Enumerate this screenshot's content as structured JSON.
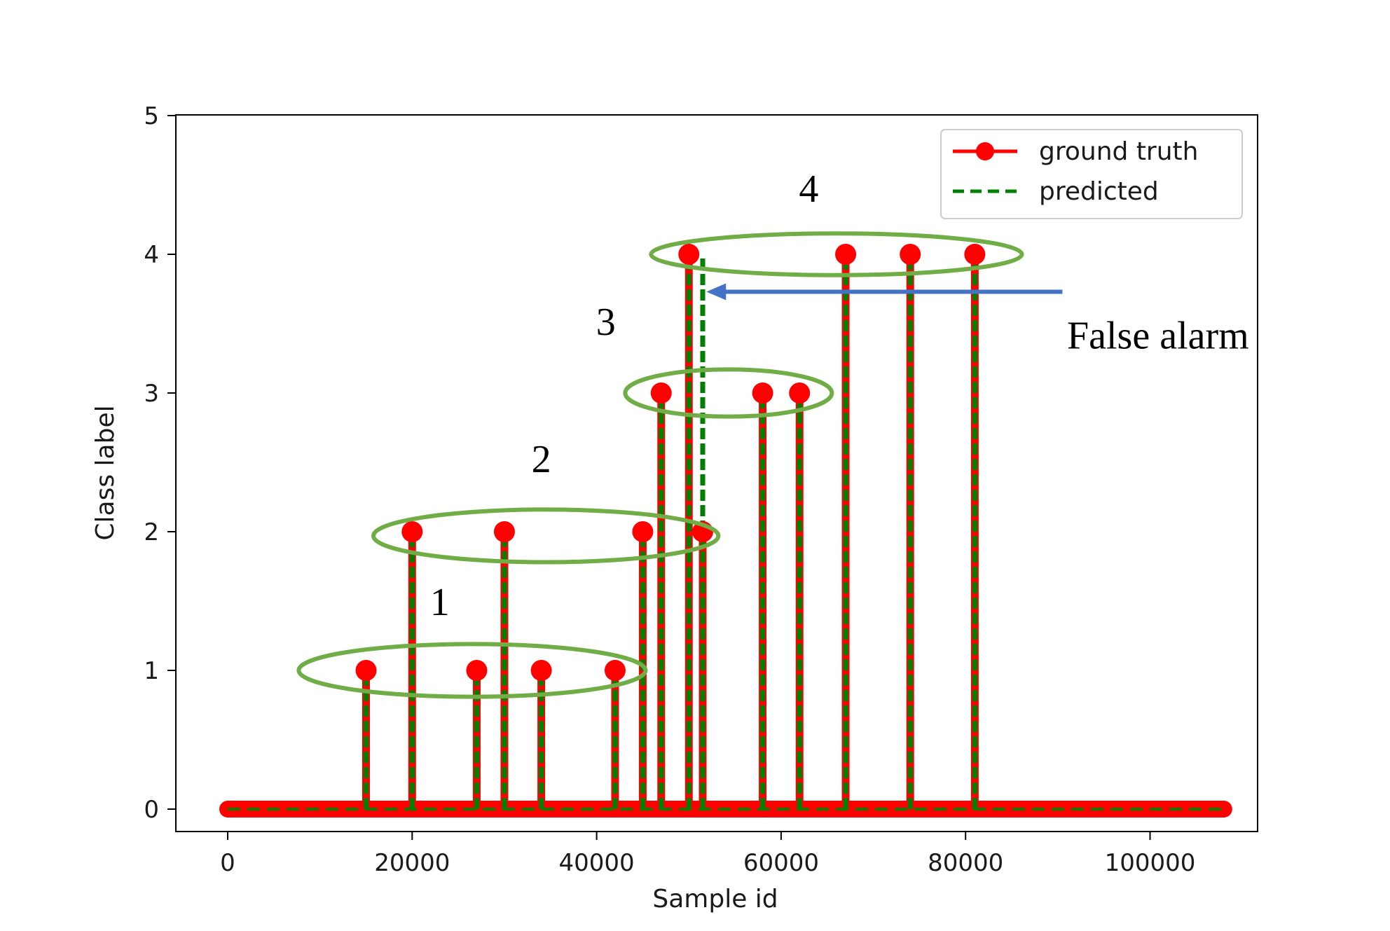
{
  "chart_data": {
    "type": "line",
    "title": "",
    "xlabel": "Sample id",
    "ylabel": "Class label",
    "xlim": [
      -5000,
      113000
    ],
    "ylim": [
      -0.2,
      5
    ],
    "xticks": [
      0,
      20000,
      40000,
      60000,
      80000,
      100000
    ],
    "xtick_labels": [
      "0",
      "20000",
      "40000",
      "60000",
      "80000",
      "100000"
    ],
    "yticks": [
      0,
      1,
      2,
      3,
      4,
      5
    ],
    "ytick_labels": [
      "0",
      "1",
      "2",
      "3",
      "4",
      "5"
    ],
    "grid": false,
    "legend_placement": "top-right",
    "colors": {
      "ground_truth": "#ff0000",
      "predicted": "#008000",
      "ellipse": "#70ad47",
      "arrow": "#4472c4"
    },
    "series": [
      {
        "name": "ground truth",
        "style": "solid-with-markers",
        "baseline": 0,
        "x_range": [
          0,
          108000
        ],
        "events": [
          {
            "x": 15000,
            "y": 1
          },
          {
            "x": 20000,
            "y": 2
          },
          {
            "x": 27000,
            "y": 1
          },
          {
            "x": 30000,
            "y": 2
          },
          {
            "x": 34000,
            "y": 1
          },
          {
            "x": 42000,
            "y": 1
          },
          {
            "x": 45000,
            "y": 2
          },
          {
            "x": 47000,
            "y": 3
          },
          {
            "x": 50000,
            "y": 4
          },
          {
            "x": 51500,
            "y": 2
          },
          {
            "x": 58000,
            "y": 3
          },
          {
            "x": 62000,
            "y": 3
          },
          {
            "x": 67000,
            "y": 4
          },
          {
            "x": 74000,
            "y": 4
          },
          {
            "x": 81000,
            "y": 4
          }
        ]
      },
      {
        "name": "predicted",
        "style": "dashed",
        "baseline": 0,
        "x_range": [
          0,
          108000
        ],
        "events": [
          {
            "x": 15000,
            "y": 1
          },
          {
            "x": 20000,
            "y": 2
          },
          {
            "x": 27000,
            "y": 1
          },
          {
            "x": 30000,
            "y": 2
          },
          {
            "x": 34000,
            "y": 1
          },
          {
            "x": 42000,
            "y": 1
          },
          {
            "x": 45000,
            "y": 2
          },
          {
            "x": 47000,
            "y": 3
          },
          {
            "x": 50000,
            "y": 4
          },
          {
            "x": 51500,
            "y": 4
          },
          {
            "x": 58000,
            "y": 3
          },
          {
            "x": 62000,
            "y": 3
          },
          {
            "x": 67000,
            "y": 4
          },
          {
            "x": 74000,
            "y": 4
          },
          {
            "x": 81000,
            "y": 4
          }
        ]
      }
    ],
    "annotations": {
      "groups": [
        {
          "label": "1",
          "cx": 26500,
          "cy": 1.0,
          "rx": 18800,
          "ry": 0.19,
          "label_x": 23000,
          "label_y": 1.4
        },
        {
          "label": "2",
          "cx": 34500,
          "cy": 1.97,
          "rx": 18700,
          "ry": 0.19,
          "label_x": 34000,
          "label_y": 2.43
        },
        {
          "label": "3",
          "cx": 54300,
          "cy": 3.0,
          "rx": 11200,
          "ry": 0.17,
          "label_x": 41000,
          "label_y": 3.42
        },
        {
          "label": "4",
          "cx": 66000,
          "cy": 4.0,
          "rx": 20100,
          "ry": 0.15,
          "label_x": 63000,
          "label_y": 4.38
        }
      ],
      "false_alarm": {
        "text": "False alarm",
        "arrow_from": {
          "x": 90500,
          "y": 3.73
        },
        "arrow_to": {
          "x": 51900,
          "y": 3.73
        },
        "text_x": 91000,
        "text_y": 3.32
      }
    }
  }
}
